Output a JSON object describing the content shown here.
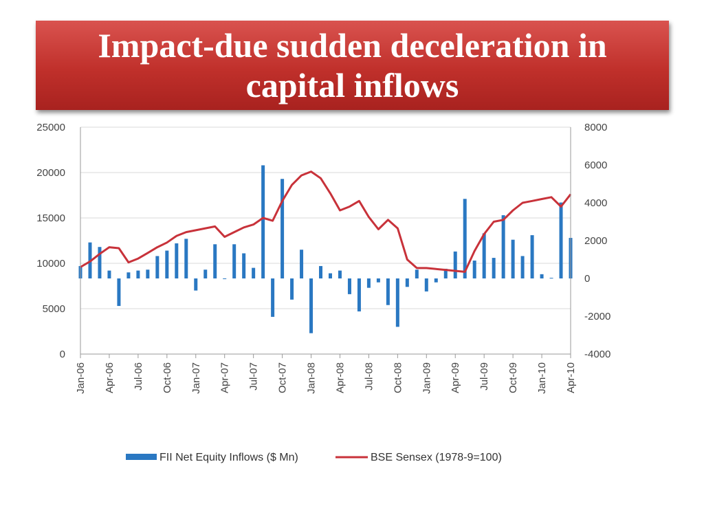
{
  "title": "Impact-due sudden deceleration in capital inflows",
  "colors": {
    "banner": "#c0302b",
    "bars": "#2a78c2",
    "line": "#c8323a",
    "grid": "#d9d9d9"
  },
  "chart_data": {
    "type": "bar-line-combo",
    "x_tick_labels": [
      "Jan-06",
      "Apr-06",
      "Jul-06",
      "Oct-06",
      "Jan-07",
      "Apr-07",
      "Jul-07",
      "Oct-07",
      "Jan-08",
      "Apr-08",
      "Jul-08",
      "Oct-08",
      "Jan-09",
      "Apr-09",
      "Jul-09",
      "Oct-09",
      "Jan-10",
      "Apr-10"
    ],
    "x_tick_indices": [
      0,
      3,
      6,
      9,
      12,
      15,
      18,
      21,
      24,
      27,
      30,
      33,
      36,
      39,
      42,
      45,
      48,
      51
    ],
    "months": [
      "Jan-06",
      "Feb-06",
      "Mar-06",
      "Apr-06",
      "May-06",
      "Jun-06",
      "Jul-06",
      "Aug-06",
      "Sep-06",
      "Oct-06",
      "Nov-06",
      "Dec-06",
      "Jan-07",
      "Feb-07",
      "Mar-07",
      "Apr-07",
      "May-07",
      "Jun-07",
      "Jul-07",
      "Aug-07",
      "Sep-07",
      "Oct-07",
      "Nov-07",
      "Dec-07",
      "Jan-08",
      "Feb-08",
      "Mar-08",
      "Apr-08",
      "May-08",
      "Jun-08",
      "Jul-08",
      "Aug-08",
      "Sep-08",
      "Oct-08",
      "Nov-08",
      "Dec-08",
      "Jan-09",
      "Feb-09",
      "Mar-09",
      "Apr-09",
      "May-09",
      "Jun-09",
      "Jul-09",
      "Aug-09",
      "Sep-09",
      "Oct-09",
      "Nov-09",
      "Dec-09",
      "Jan-10",
      "Feb-10",
      "Mar-10",
      "Apr-10"
    ],
    "left_axis": {
      "ylim": [
        0,
        25000
      ],
      "ticks": [
        0,
        5000,
        10000,
        15000,
        20000,
        25000
      ]
    },
    "right_axis": {
      "ylim": [
        -4000,
        8000
      ],
      "ticks": [
        -4000,
        -2000,
        0,
        2000,
        4000,
        6000,
        8000
      ]
    },
    "series": [
      {
        "name": "FII Net Equity Inflows ($ Mn)",
        "type": "bar",
        "axis": "left",
        "values": [
          9700,
          12300,
          11800,
          9200,
          5300,
          9000,
          9200,
          9300,
          10800,
          11400,
          12200,
          12700,
          7000,
          9300,
          12100,
          8300,
          12100,
          11100,
          9500,
          20800,
          4100,
          19300,
          6000,
          11500,
          2300,
          9700,
          8900,
          9200,
          6600,
          4700,
          7300,
          7900,
          5400,
          3000,
          7400,
          9300,
          6900,
          7900,
          9400,
          11300,
          17100,
          10300,
          13300,
          10600,
          15300,
          12600,
          10800,
          13100,
          8800,
          8400,
          16700,
          12800
        ]
      },
      {
        "name": "BSE Sensex (1978-9=100)",
        "type": "line",
        "axis": "right",
        "values": [
          600,
          900,
          1300,
          1650,
          1600,
          850,
          1050,
          1350,
          1650,
          1900,
          2250,
          2450,
          2550,
          2650,
          2750,
          2200,
          2450,
          2700,
          2850,
          3200,
          3050,
          4100,
          4950,
          5450,
          5650,
          5300,
          4500,
          3600,
          3800,
          4100,
          3250,
          2600,
          3100,
          2650,
          1000,
          550,
          550,
          500,
          450,
          400,
          350,
          1450,
          2350,
          3000,
          3100,
          3600,
          4000,
          4100,
          4200,
          4300,
          3800,
          4450
        ]
      }
    ],
    "legend": {
      "placement": "bottom",
      "entries": [
        "FII Net Equity Inflows ($ Mn)",
        "BSE Sensex (1978-9=100)"
      ]
    },
    "grid": true
  }
}
